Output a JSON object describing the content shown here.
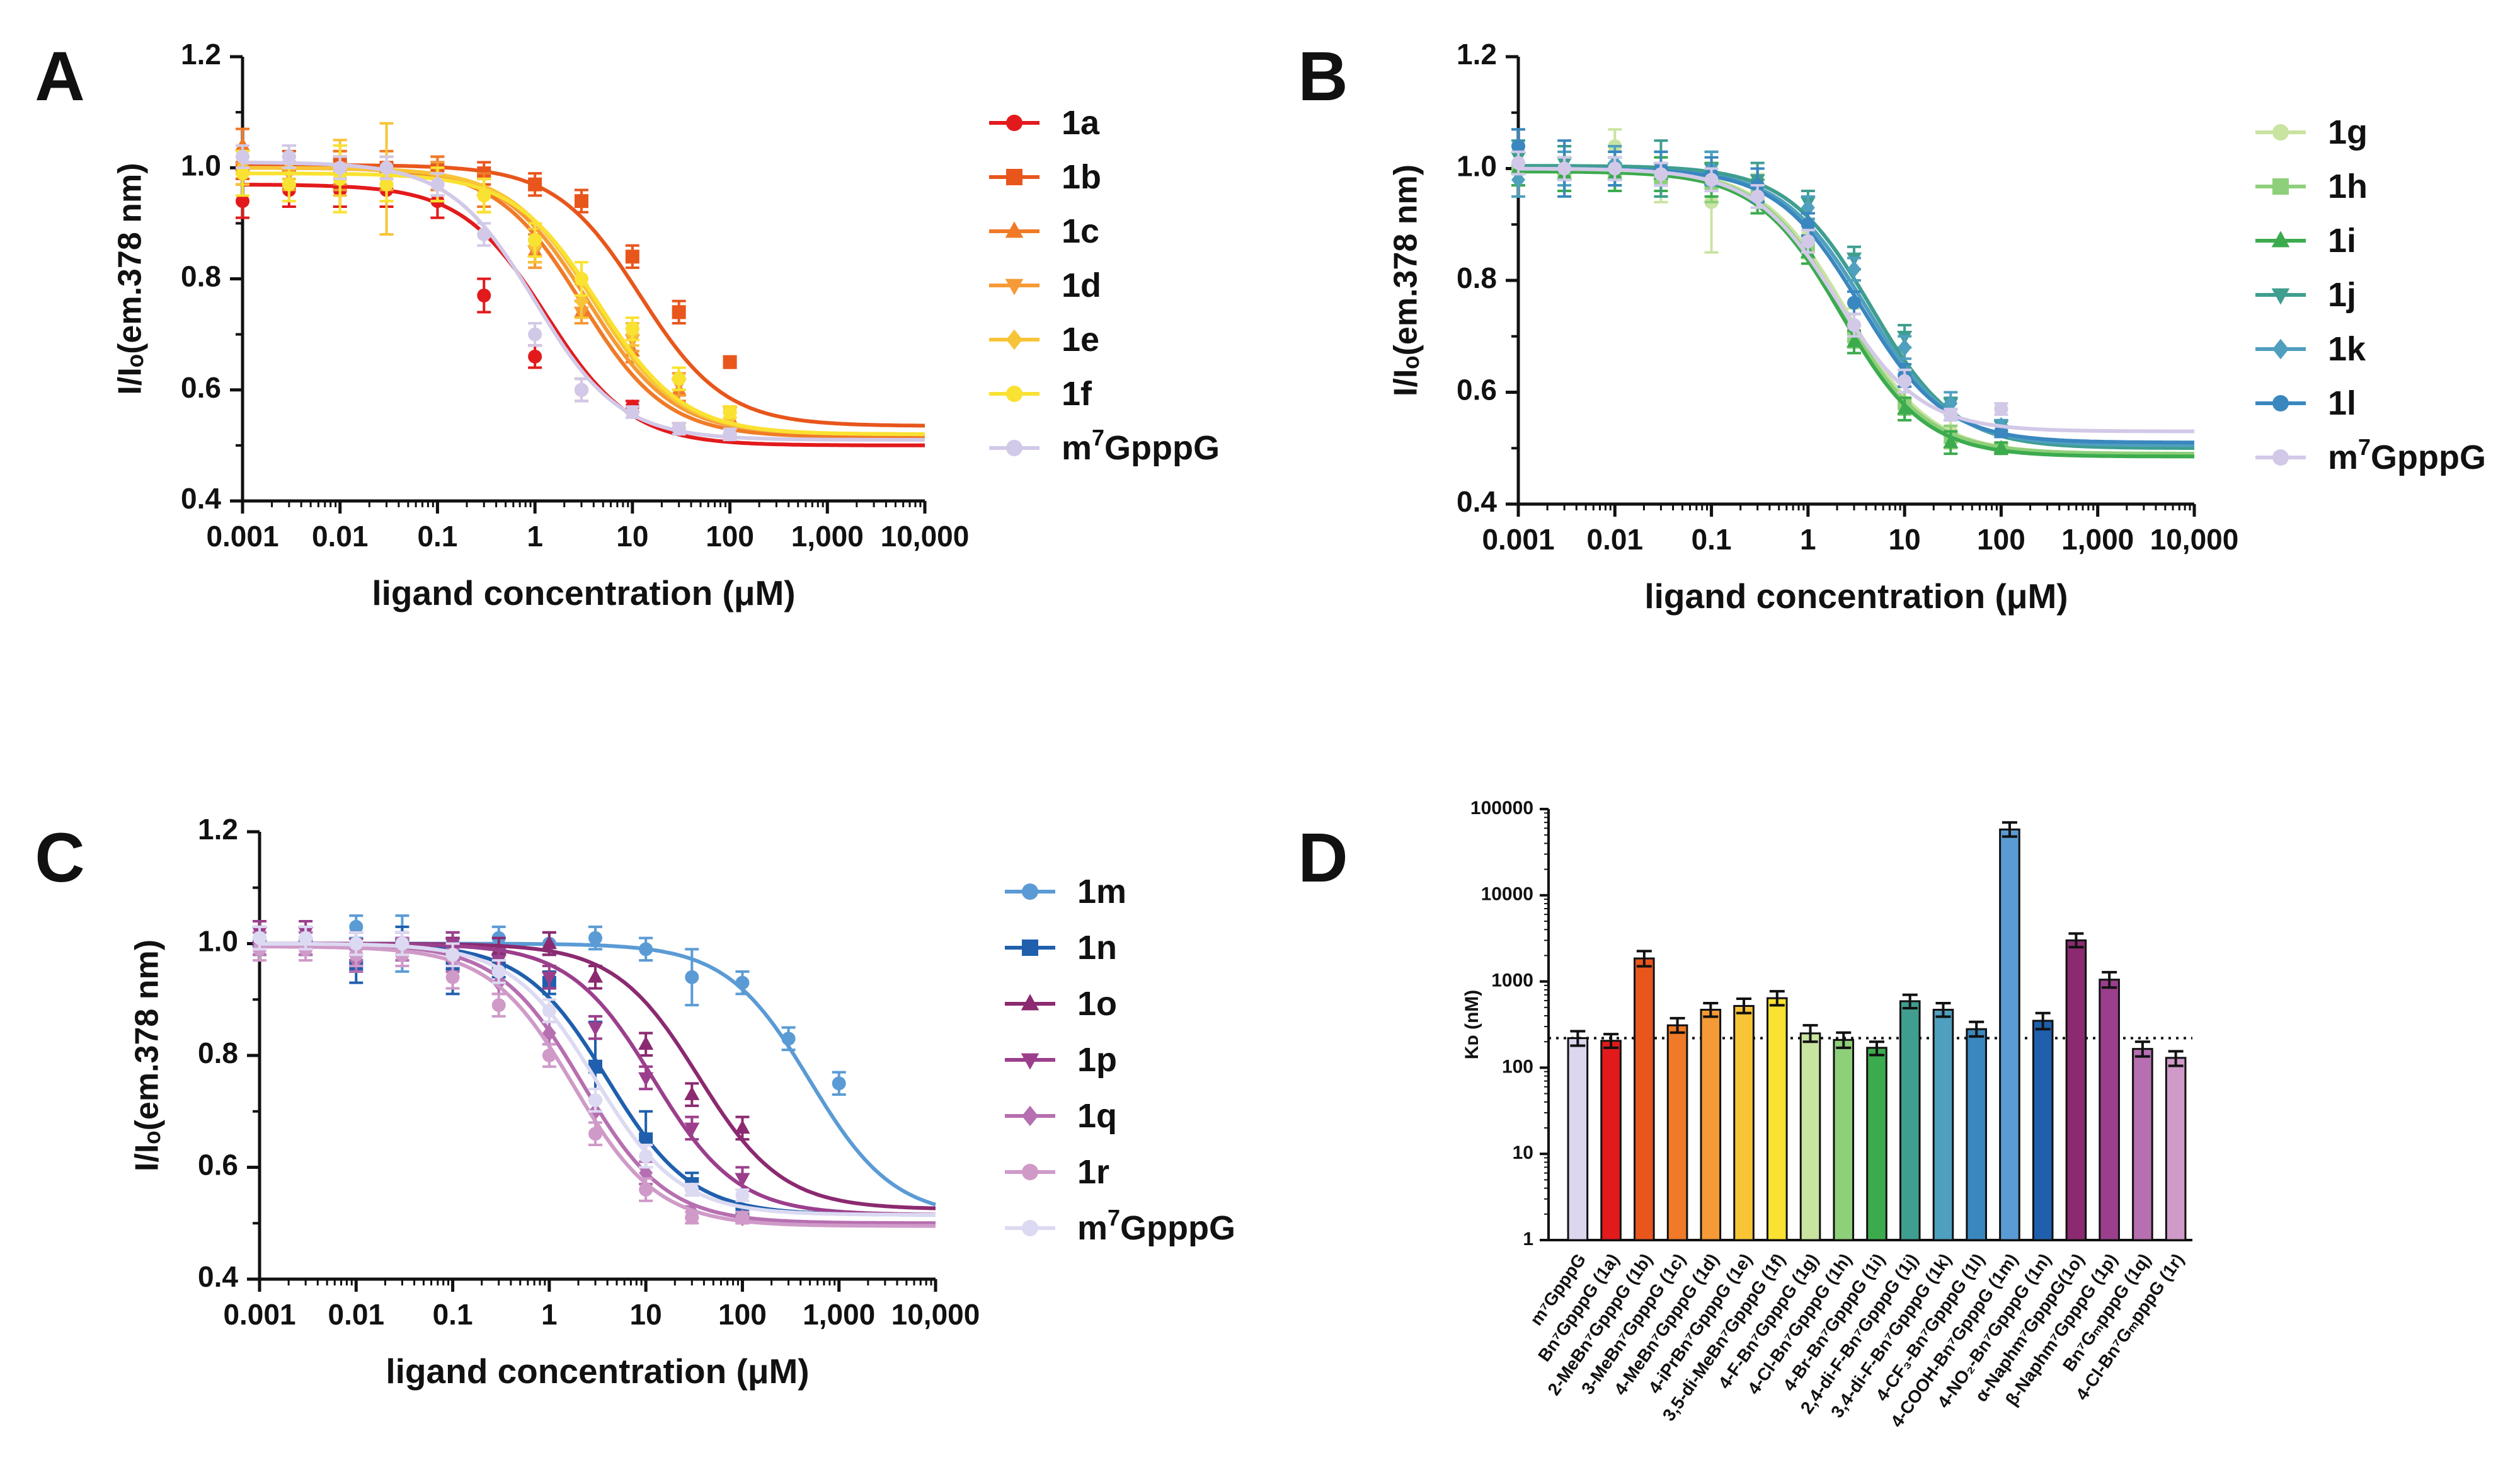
{
  "figure": {
    "panels": [
      "A",
      "B",
      "C",
      "D"
    ]
  },
  "chart_data": [
    {
      "panel": "A",
      "type": "line",
      "xscale": "log",
      "xlabel": "ligand concentration (μM)",
      "ylabel": "I/Iₒ(em.378 nm)",
      "xlim": [
        0.001,
        10000
      ],
      "ylim": [
        0.4,
        1.2
      ],
      "xticks": [
        "0.001",
        "0.01",
        "0.1",
        "1",
        "10",
        "100",
        "1,000",
        "10,000"
      ],
      "yticks": [
        "0.4",
        "0.6",
        "0.8",
        "1.0",
        "1.2"
      ],
      "x": [
        0.001,
        0.003,
        0.01,
        0.03,
        0.1,
        0.3,
        1,
        3,
        10,
        30,
        100
      ],
      "series": [
        {
          "name": "1a",
          "color": "#e31a1c",
          "marker": "circle",
          "top": 0.97,
          "bottom": 0.5,
          "ec50": 1.3,
          "values": [
            0.94,
            0.96,
            0.96,
            0.96,
            0.94,
            0.77,
            0.66,
            0.6,
            0.57,
            0.53,
            0.52
          ],
          "errors": [
            0.03,
            0.03,
            0.03,
            0.03,
            0.03,
            0.03,
            0.02,
            0.02,
            0.01,
            0.01,
            0.01
          ]
        },
        {
          "name": "1b",
          "color": "#e8561c",
          "marker": "square",
          "top": 1.005,
          "bottom": 0.535,
          "ec50": 12,
          "values": [
            1.0,
            1.0,
            1.01,
            1.0,
            1.0,
            0.99,
            0.97,
            0.94,
            0.84,
            0.74,
            0.65
          ],
          "errors": [
            0.02,
            0.03,
            0.02,
            0.02,
            0.02,
            0.02,
            0.02,
            0.02,
            0.02,
            0.02,
            0.01
          ]
        },
        {
          "name": "1c",
          "color": "#f07a27",
          "marker": "triangle-up",
          "top": 1.0,
          "bottom": 0.515,
          "ec50": 3.0,
          "values": [
            1.04,
            1.0,
            1.0,
            1.0,
            0.99,
            0.96,
            0.85,
            0.74,
            0.67,
            0.6,
            0.55
          ],
          "errors": [
            0.03,
            0.04,
            0.03,
            0.03,
            0.03,
            0.03,
            0.02,
            0.02,
            0.02,
            0.02,
            0.02
          ]
        },
        {
          "name": "1d",
          "color": "#f59a36",
          "marker": "triangle-down",
          "top": 1.0,
          "bottom": 0.52,
          "ec50": 3.5,
          "values": [
            1.0,
            0.99,
            1.0,
            0.99,
            0.98,
            0.95,
            0.85,
            0.74,
            0.69,
            0.61,
            0.56
          ],
          "errors": [
            0.03,
            0.03,
            0.04,
            0.03,
            0.03,
            0.03,
            0.03,
            0.02,
            0.02,
            0.02,
            0.01
          ]
        },
        {
          "name": "1e",
          "color": "#f8c437",
          "marker": "diamond",
          "top": 1.0,
          "bottom": 0.52,
          "ec50": 4.0,
          "values": [
            1.0,
            1.01,
            1.0,
            0.98,
            0.97,
            0.95,
            0.86,
            0.76,
            0.7,
            0.62,
            0.55
          ],
          "errors": [
            0.03,
            0.03,
            0.05,
            0.1,
            0.03,
            0.03,
            0.03,
            0.03,
            0.02,
            0.02,
            0.01
          ]
        },
        {
          "name": "1f",
          "color": "#f9e232",
          "marker": "circle",
          "top": 0.99,
          "bottom": 0.52,
          "ec50": 4.5,
          "values": [
            0.99,
            0.97,
            0.98,
            0.97,
            0.97,
            0.95,
            0.87,
            0.8,
            0.71,
            0.62,
            0.56
          ],
          "errors": [
            0.04,
            0.03,
            0.06,
            0.03,
            0.03,
            0.03,
            0.03,
            0.03,
            0.02,
            0.02,
            0.01
          ]
        },
        {
          "name": "m⁷GpppG",
          "color": "#d2c9e8",
          "marker": "circle",
          "top": 1.01,
          "bottom": 0.51,
          "ec50": 1.0,
          "values": [
            1.02,
            1.02,
            1.0,
            1.0,
            0.97,
            0.88,
            0.7,
            0.6,
            0.56,
            0.53,
            0.52
          ],
          "errors": [
            0.02,
            0.02,
            0.02,
            0.02,
            0.02,
            0.02,
            0.02,
            0.02,
            0.01,
            0.01,
            0.01
          ]
        }
      ],
      "legend": [
        "1a",
        "1b",
        "1c",
        "1d",
        "1e",
        "1f",
        "m⁷GpppG"
      ]
    },
    {
      "panel": "B",
      "type": "line",
      "xscale": "log",
      "xlabel": "ligand concentration (μM)",
      "ylabel": "I/Iₒ(em.378 nm)",
      "xlim": [
        0.001,
        10000
      ],
      "ylim": [
        0.4,
        1.2
      ],
      "xticks": [
        "0.001",
        "0.01",
        "0.1",
        "1",
        "10",
        "100",
        "1,000",
        "10,000"
      ],
      "yticks": [
        "0.4",
        "0.6",
        "0.8",
        "1.0",
        "1.2"
      ],
      "x": [
        0.001,
        0.003,
        0.01,
        0.03,
        0.1,
        0.3,
        1,
        3,
        10,
        30,
        100
      ],
      "series": [
        {
          "name": "1g",
          "color": "#c9e3a0",
          "marker": "circle",
          "top": 1.0,
          "bottom": 0.49,
          "ec50": 2.5,
          "values": [
            1.04,
            1.0,
            1.04,
            0.98,
            0.94,
            0.96,
            0.88,
            0.72,
            0.62,
            0.53,
            0.57
          ],
          "errors": [
            0.03,
            0.04,
            0.03,
            0.04,
            0.09,
            0.03,
            0.03,
            0.03,
            0.02,
            0.02,
            0.01
          ]
        },
        {
          "name": "1h",
          "color": "#8ecf7a",
          "marker": "square",
          "top": 1.0,
          "bottom": 0.49,
          "ec50": 2.3,
          "values": [
            1.0,
            0.99,
            0.99,
            0.98,
            0.97,
            0.95,
            0.86,
            0.7,
            0.58,
            0.52,
            0.5
          ],
          "errors": [
            0.03,
            0.03,
            0.03,
            0.03,
            0.03,
            0.03,
            0.02,
            0.02,
            0.02,
            0.02,
            0.01
          ]
        },
        {
          "name": "1i",
          "color": "#3cab4e",
          "marker": "triangle-up",
          "top": 0.995,
          "bottom": 0.485,
          "ec50": 2.2,
          "values": [
            1.0,
            0.99,
            0.99,
            0.99,
            0.98,
            0.95,
            0.85,
            0.69,
            0.57,
            0.51,
            0.5
          ],
          "errors": [
            0.03,
            0.03,
            0.03,
            0.03,
            0.03,
            0.03,
            0.02,
            0.02,
            0.02,
            0.02,
            0.01
          ]
        },
        {
          "name": "1j",
          "color": "#3f9e8f",
          "marker": "triangle-down",
          "top": 1.005,
          "bottom": 0.5,
          "ec50": 4.5,
          "values": [
            1.02,
            1.01,
            1.0,
            1.0,
            1.0,
            0.98,
            0.94,
            0.84,
            0.7,
            0.58,
            0.54
          ],
          "errors": [
            0.03,
            0.03,
            0.03,
            0.05,
            0.03,
            0.03,
            0.02,
            0.02,
            0.02,
            0.01,
            0.01
          ]
        },
        {
          "name": "1k",
          "color": "#4f9fbf",
          "marker": "diamond",
          "top": 1.0,
          "bottom": 0.505,
          "ec50": 4.0,
          "values": [
            0.98,
            1.0,
            1.01,
            1.0,
            1.0,
            0.97,
            0.93,
            0.82,
            0.68,
            0.58,
            0.54
          ],
          "errors": [
            0.03,
            0.03,
            0.03,
            0.03,
            0.03,
            0.03,
            0.02,
            0.02,
            0.02,
            0.02,
            0.01
          ]
        },
        {
          "name": "1l",
          "color": "#3a87bf",
          "marker": "circle",
          "top": 1.0,
          "bottom": 0.51,
          "ec50": 3.5,
          "values": [
            1.04,
            1.0,
            1.0,
            1.0,
            0.99,
            0.97,
            0.9,
            0.76,
            0.63,
            0.56,
            0.53
          ],
          "errors": [
            0.03,
            0.05,
            0.03,
            0.03,
            0.03,
            0.03,
            0.02,
            0.02,
            0.02,
            0.01,
            0.01
          ]
        },
        {
          "name": "m⁷GpppG",
          "color": "#d2c9e8",
          "marker": "circle",
          "top": 1.0,
          "bottom": 0.53,
          "ec50": 2.0,
          "values": [
            1.01,
            1.0,
            1.0,
            0.99,
            0.98,
            0.95,
            0.87,
            0.72,
            0.62,
            0.56,
            0.57
          ],
          "errors": [
            0.02,
            0.02,
            0.02,
            0.02,
            0.02,
            0.02,
            0.02,
            0.02,
            0.02,
            0.01,
            0.01
          ]
        }
      ],
      "legend": [
        "1g",
        "1h",
        "1i",
        "1j",
        "1k",
        "1l",
        "m⁷GpppG"
      ]
    },
    {
      "panel": "C",
      "type": "line",
      "xscale": "log",
      "xlabel": "ligand concentration (μM)",
      "ylabel": "I/Iₒ(em.378 nm)",
      "xlim": [
        0.001,
        10000
      ],
      "ylim": [
        0.4,
        1.2
      ],
      "xticks": [
        "0.001",
        "0.01",
        "0.1",
        "1",
        "10",
        "100",
        "1,000",
        "10,000"
      ],
      "yticks": [
        "0.4",
        "0.6",
        "0.8",
        "1.0",
        "1.2"
      ],
      "x": [
        0.001,
        0.003,
        0.01,
        0.03,
        0.1,
        0.3,
        1,
        3,
        10,
        30,
        100,
        300,
        1000
      ],
      "series": [
        {
          "name": "1m",
          "color": "#5b9bd5",
          "marker": "circle",
          "top": 1.0,
          "bottom": 0.51,
          "ec50": 500,
          "values": [
            1.01,
            1.0,
            1.03,
            1.0,
            1.0,
            1.01,
            1.0,
            1.01,
            0.99,
            0.94,
            0.93,
            0.83,
            0.75
          ],
          "errors": [
            0.02,
            0.02,
            0.02,
            0.05,
            0.02,
            0.02,
            0.02,
            0.02,
            0.02,
            0.05,
            0.02,
            0.02,
            0.02
          ]
        },
        {
          "name": "1n",
          "color": "#1f5fad",
          "marker": "square",
          "top": 1.0,
          "bottom": 0.515,
          "ec50": 4.0,
          "values": [
            1.0,
            1.0,
            0.96,
            1.0,
            0.96,
            0.96,
            0.93,
            0.78,
            0.65,
            0.57,
            0.52,
            null,
            null
          ],
          "errors": [
            0.02,
            0.02,
            0.03,
            0.03,
            0.05,
            0.02,
            0.02,
            0.08,
            0.05,
            0.02,
            0.01,
            null,
            null
          ]
        },
        {
          "name": "1o",
          "color": "#8b2a70",
          "marker": "triangle-up",
          "top": 1.0,
          "bottom": 0.525,
          "ec50": 35,
          "values": [
            1.01,
            1.01,
            1.0,
            1.0,
            0.99,
            0.99,
            1.0,
            0.94,
            0.82,
            0.73,
            0.67,
            null,
            null
          ],
          "errors": [
            0.02,
            0.02,
            0.02,
            0.02,
            0.02,
            0.02,
            0.02,
            0.02,
            0.02,
            0.02,
            0.02,
            null,
            null
          ]
        },
        {
          "name": "1p",
          "color": "#9b3f8c",
          "marker": "triangle-down",
          "top": 1.0,
          "bottom": 0.515,
          "ec50": 12,
          "values": [
            1.02,
            1.02,
            1.0,
            1.0,
            1.0,
            0.97,
            0.94,
            0.85,
            0.76,
            0.67,
            0.58,
            null,
            null
          ],
          "errors": [
            0.02,
            0.02,
            0.02,
            0.02,
            0.02,
            0.02,
            0.02,
            0.02,
            0.02,
            0.02,
            0.02,
            null,
            null
          ]
        },
        {
          "name": "1q",
          "color": "#b66fb0",
          "marker": "diamond",
          "top": 1.0,
          "bottom": 0.5,
          "ec50": 2.2,
          "values": [
            1.0,
            1.0,
            0.97,
            0.99,
            0.97,
            0.93,
            0.84,
            0.7,
            0.59,
            0.52,
            0.51,
            null,
            null
          ],
          "errors": [
            0.02,
            0.02,
            0.02,
            0.02,
            0.02,
            0.02,
            0.02,
            0.02,
            0.02,
            0.01,
            0.01,
            null,
            null
          ]
        },
        {
          "name": "1r",
          "color": "#cf9ac8",
          "marker": "circle",
          "top": 0.995,
          "bottom": 0.495,
          "ec50": 1.8,
          "values": [
            0.99,
            0.99,
            0.98,
            0.98,
            0.94,
            0.89,
            0.8,
            0.66,
            0.56,
            0.51,
            0.51,
            null,
            null
          ],
          "errors": [
            0.02,
            0.02,
            0.02,
            0.02,
            0.02,
            0.02,
            0.02,
            0.02,
            0.02,
            0.01,
            0.01,
            null,
            null
          ]
        },
        {
          "name": "m⁷GpppG",
          "color": "#dcdaf2",
          "marker": "circle",
          "top": 1.0,
          "bottom": 0.515,
          "ec50": 3.0,
          "values": [
            1.01,
            1.01,
            1.0,
            1.0,
            0.98,
            0.95,
            0.88,
            0.72,
            0.62,
            0.56,
            0.55,
            null,
            null
          ],
          "errors": [
            0.02,
            0.02,
            0.02,
            0.02,
            0.02,
            0.02,
            0.02,
            0.02,
            0.02,
            0.01,
            0.01,
            null,
            null
          ]
        }
      ],
      "legend": [
        "1m",
        "1n",
        "1o",
        "1p",
        "1q",
        "1r",
        "m⁷GpppG"
      ]
    },
    {
      "panel": "D",
      "type": "bar",
      "yscale": "log",
      "ylabel": "Kᴅ (nM)",
      "ylim": [
        1,
        100000
      ],
      "yticks": [
        "1",
        "10",
        "100",
        "1000",
        "10000",
        "100000"
      ],
      "reference_line": 220,
      "categories": [
        "m⁷GpppG",
        "Bn⁷GpppG (1a)",
        "2-MeBn⁷GpppG (1b)",
        "3-MeBn⁷GpppG (1c)",
        "4-MeBn⁷GpppG (1d)",
        "4-iPrBn⁷GpppG (1e)",
        "3,5-di-MeBn⁷GpppG (1f)",
        "4-F-Bn⁷GpppG (1g)",
        "4-Cl-Bn⁷GpppG (1h)",
        "4-Br-Bn⁷GpppG (1i)",
        "2,4-di-F-Bn⁷GpppG (1j)",
        "3,4-di-F-Bn⁷GpppG (1k)",
        "4-CF₃-Bn⁷GpppG (1l)",
        "4-COOH-Bn⁷GpppG (1m)",
        "4-NO₂-Bn⁷GpppG (1n)",
        "α-Naphm⁷GpppG(1o)",
        "β-Naphm⁷GpppG (1p)",
        "Bn⁷GₘpppG (1q)",
        "4-Cl-Bn⁷GₘpppG (1r)"
      ],
      "values": [
        220,
        205,
        1850,
        310,
        470,
        520,
        640,
        250,
        210,
        170,
        590,
        470,
        280,
        58000,
        350,
        3000,
        1050,
        165,
        130
      ],
      "errors_low": [
        40,
        35,
        350,
        55,
        80,
        90,
        110,
        50,
        40,
        30,
        100,
        80,
        50,
        10000,
        70,
        500,
        200,
        30,
        25
      ],
      "errors_high": [
        45,
        40,
        400,
        65,
        90,
        110,
        130,
        60,
        45,
        30,
        110,
        90,
        60,
        12000,
        80,
        600,
        230,
        35,
        25
      ],
      "colors": [
        "#dcd7ee",
        "#e31a1c",
        "#e8561c",
        "#f07a27",
        "#f59a36",
        "#f8c437",
        "#f9e232",
        "#c9e3a0",
        "#8ecf7a",
        "#3cab4e",
        "#3f9e8f",
        "#4f9fbf",
        "#3a87bf",
        "#5b9bd5",
        "#1f5fad",
        "#8b2a70",
        "#9b3f8c",
        "#b66fb0",
        "#cf9ac8"
      ]
    }
  ]
}
